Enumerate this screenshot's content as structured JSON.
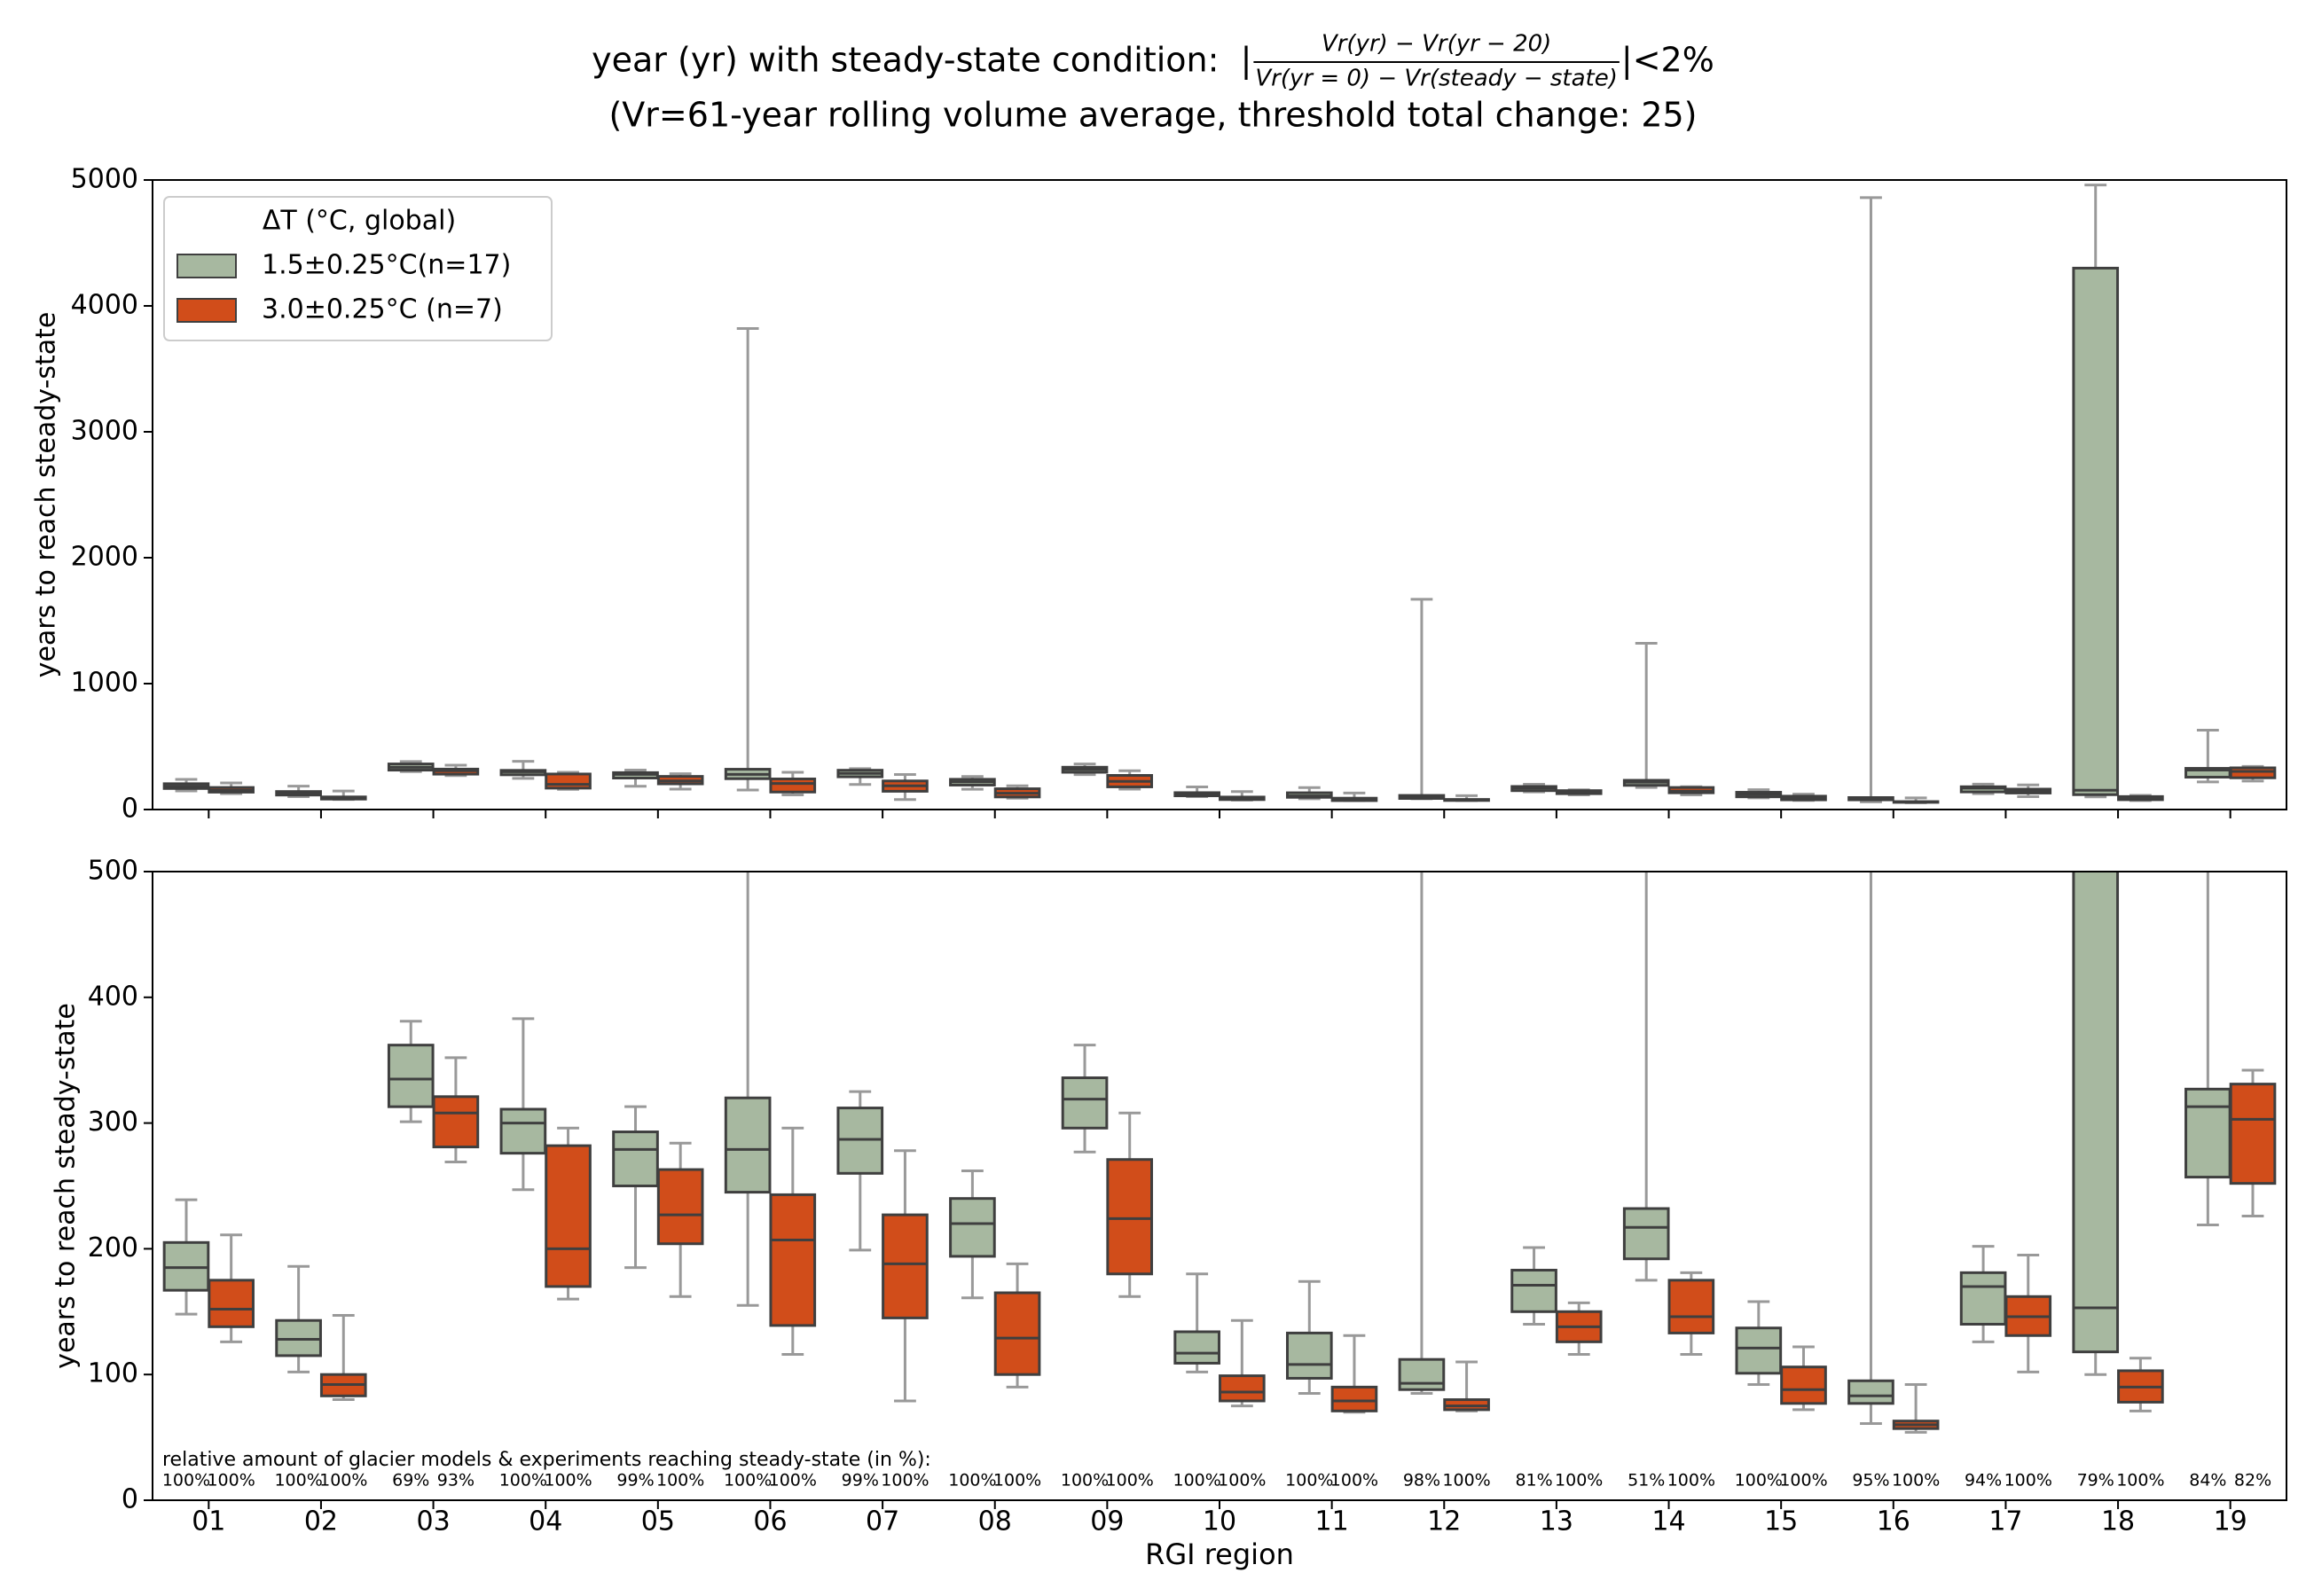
{
  "chart_data": {
    "type": "box",
    "title_prefix": "year (yr) with steady-state condition:  |",
    "title_numerator": "Vr(yr) − Vr(yr − 20)",
    "title_denominator": "Vr(yr = 0) − Vr(steady − state)",
    "title_suffix": "|<2%",
    "subtitle": "(Vr=61-year rolling volume average, threshold total change: 25)",
    "xlabel": "RGI region",
    "annotation": "relative amount of glacier models & experiments reaching steady-state (in %):",
    "legend_title": "ΔT (°C, global)",
    "categories": [
      "01",
      "02",
      "03",
      "04",
      "05",
      "06",
      "07",
      "08",
      "09",
      "10",
      "11",
      "12",
      "13",
      "14",
      "15",
      "16",
      "17",
      "18",
      "19"
    ],
    "series": [
      {
        "name": "1.5±0.25°C(n=17)",
        "color": "#a7b8a0",
        "whislo": [
          148,
          102,
          301,
          247,
          185,
          155,
          199,
          161,
          277,
          102,
          85,
          85,
          140,
          175,
          92,
          61,
          126,
          100,
          219
        ],
        "q1": [
          167,
          115,
          313,
          276,
          250,
          245,
          260,
          194,
          296,
          109,
          97,
          88,
          150,
          192,
          101,
          77,
          140,
          118,
          257
        ],
        "med": [
          185,
          128,
          335,
          300,
          279,
          279,
          287,
          220,
          319,
          117,
          108,
          93,
          171,
          217,
          121,
          83,
          170,
          153,
          313
        ],
        "q3": [
          205,
          143,
          362,
          311,
          293,
          320,
          312,
          240,
          336,
          134,
          133,
          112,
          183,
          232,
          137,
          95,
          181,
          4300,
          327
        ],
        "whishi": [
          239,
          186,
          381,
          383,
          313,
          3820,
          325,
          262,
          362,
          180,
          174,
          1670,
          201,
          1320,
          158,
          4860,
          202,
          4960,
          630
        ],
        "reached_labels": [
          "100%",
          "100%",
          "69%",
          "100%",
          "99%",
          "100%",
          "99%",
          "100%",
          "100%",
          "100%",
          "100%",
          "98%",
          "81%",
          "51%",
          "100%",
          "95%",
          "94%",
          "79%",
          "84%"
        ]
      },
      {
        "name": "3.0±0.25°C (n=7)",
        "color": "#d14d1a",
        "whislo": [
          126,
          80,
          269,
          160,
          162,
          116,
          79,
          90,
          162,
          75,
          70,
          71,
          116,
          116,
          72,
          54,
          102,
          71,
          226
        ],
        "q1": [
          138,
          83,
          281,
          170,
          204,
          139,
          145,
          100,
          180,
          79,
          71,
          72,
          126,
          133,
          77,
          57,
          131,
          78,
          252
        ],
        "med": [
          152,
          92,
          308,
          200,
          227,
          207,
          188,
          129,
          224,
          86,
          79,
          75,
          138,
          146,
          88,
          60,
          146,
          90,
          303
        ],
        "q3": [
          175,
          100,
          321,
          282,
          263,
          243,
          227,
          165,
          271,
          99,
          90,
          80,
          150,
          175,
          106,
          63,
          162,
          103,
          331
        ],
        "whishi": [
          211,
          147,
          352,
          296,
          284,
          296,
          278,
          188,
          308,
          143,
          131,
          110,
          157,
          181,
          122,
          92,
          195,
          113,
          342
        ],
        "reached_labels": [
          "100%",
          "100%",
          "93%",
          "100%",
          "100%",
          "100%",
          "100%",
          "100%",
          "100%",
          "100%",
          "100%",
          "100%",
          "100%",
          "100%",
          "100%",
          "100%",
          "100%",
          "100%",
          "82%"
        ]
      }
    ],
    "panels": [
      {
        "ylabel": "years to reach steady-state",
        "ylim": [
          0,
          5000
        ],
        "yticks": [
          0,
          1000,
          2000,
          3000,
          4000,
          5000
        ]
      },
      {
        "ylabel": "years to reach steady-state",
        "ylim": [
          0,
          500
        ],
        "yticks": [
          0,
          100,
          200,
          300,
          400,
          500
        ]
      }
    ]
  }
}
